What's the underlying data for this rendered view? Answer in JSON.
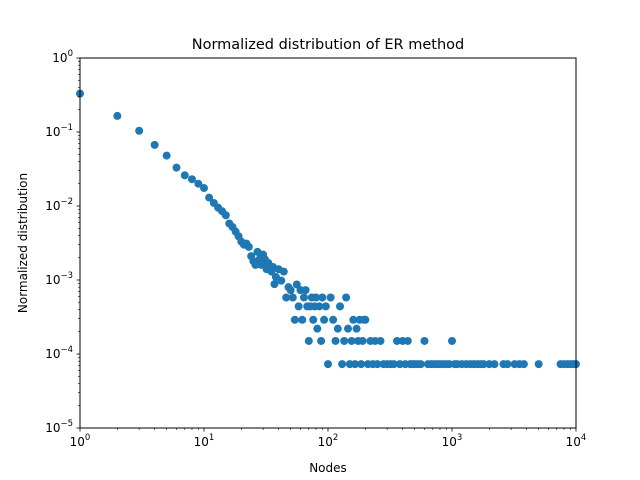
{
  "chart_data": {
    "type": "scatter",
    "title": "Normalized distribution of ER method",
    "xlabel": "Nodes",
    "ylabel": "Normalized distribution",
    "xscale": "log",
    "yscale": "log",
    "xlim": [
      1,
      10000
    ],
    "ylim": [
      1e-05,
      1
    ],
    "grid": false,
    "legend": "none",
    "x_ticks": [
      {
        "value": 1,
        "base": "10",
        "exp": "0"
      },
      {
        "value": 10,
        "base": "10",
        "exp": "1"
      },
      {
        "value": 100,
        "base": "10",
        "exp": "2"
      },
      {
        "value": 1000,
        "base": "10",
        "exp": "3"
      },
      {
        "value": 10000,
        "base": "10",
        "exp": "4"
      }
    ],
    "y_ticks": [
      {
        "value": 1e-05,
        "base": "10",
        "exp": "−5"
      },
      {
        "value": 0.0001,
        "base": "10",
        "exp": "−4"
      },
      {
        "value": 0.001,
        "base": "10",
        "exp": "−3"
      },
      {
        "value": 0.01,
        "base": "10",
        "exp": "−2"
      },
      {
        "value": 0.1,
        "base": "10",
        "exp": "−1"
      },
      {
        "value": 1,
        "base": "10",
        "exp": "0"
      }
    ],
    "marker_color": "#1f77b4",
    "points": [
      [
        1,
        0.33
      ],
      [
        2,
        0.165
      ],
      [
        3,
        0.104
      ],
      [
        4,
        0.067
      ],
      [
        5,
        0.048
      ],
      [
        6,
        0.033
      ],
      [
        7,
        0.026
      ],
      [
        8,
        0.023
      ],
      [
        9,
        0.02
      ],
      [
        10,
        0.0175
      ],
      [
        11,
        0.013
      ],
      [
        12,
        0.011
      ],
      [
        13,
        0.0095
      ],
      [
        14,
        0.0085
      ],
      [
        15,
        0.0075
      ],
      [
        16,
        0.0058
      ],
      [
        17,
        0.0052
      ],
      [
        18,
        0.0045
      ],
      [
        19,
        0.0039
      ],
      [
        20,
        0.0033
      ],
      [
        21,
        0.003
      ],
      [
        22,
        0.0031
      ],
      [
        23,
        0.0028
      ],
      [
        24,
        0.0021
      ],
      [
        25,
        0.0018
      ],
      [
        26,
        0.0016
      ],
      [
        27,
        0.0024
      ],
      [
        28,
        0.0019
      ],
      [
        29,
        0.0016
      ],
      [
        30,
        0.0022
      ],
      [
        31,
        0.0019
      ],
      [
        32,
        0.0014
      ],
      [
        33,
        0.0017
      ],
      [
        35,
        0.0013
      ],
      [
        36,
        0.0015
      ],
      [
        37,
        0.00088
      ],
      [
        38,
        0.0011
      ],
      [
        40,
        0.0014
      ],
      [
        42,
        0.00098
      ],
      [
        44,
        0.0013
      ],
      [
        46,
        0.00058
      ],
      [
        48,
        0.0008
      ],
      [
        50,
        0.00073
      ],
      [
        52,
        0.00058
      ],
      [
        54,
        0.00029
      ],
      [
        56,
        0.00087
      ],
      [
        58,
        0.00044
      ],
      [
        60,
        0.00073
      ],
      [
        62,
        0.00029
      ],
      [
        64,
        0.00058
      ],
      [
        66,
        0.00073
      ],
      [
        68,
        0.00044
      ],
      [
        70,
        0.00015
      ],
      [
        72,
        0.00044
      ],
      [
        74,
        0.00058
      ],
      [
        76,
        0.00029
      ],
      [
        78,
        0.00044
      ],
      [
        80,
        0.00058
      ],
      [
        82,
        0.00022
      ],
      [
        85,
        0.00044
      ],
      [
        88,
        0.00015
      ],
      [
        90,
        0.00058
      ],
      [
        93,
        0.00029
      ],
      [
        96,
        0.00044
      ],
      [
        100,
        7.3e-05
      ],
      [
        105,
        0.00058
      ],
      [
        110,
        0.00029
      ],
      [
        115,
        0.00015
      ],
      [
        120,
        0.00022
      ],
      [
        125,
        0.00044
      ],
      [
        130,
        7.3e-05
      ],
      [
        135,
        0.00015
      ],
      [
        140,
        0.00058
      ],
      [
        145,
        0.00022
      ],
      [
        150,
        7.3e-05
      ],
      [
        155,
        0.00015
      ],
      [
        160,
        0.00029
      ],
      [
        165,
        7.3e-05
      ],
      [
        170,
        0.00022
      ],
      [
        175,
        0.00015
      ],
      [
        180,
        0.00029
      ],
      [
        185,
        7.3e-05
      ],
      [
        190,
        0.00015
      ],
      [
        195,
        0.00029
      ],
      [
        200,
        0.00029
      ],
      [
        210,
        7.3e-05
      ],
      [
        220,
        0.00015
      ],
      [
        230,
        7.3e-05
      ],
      [
        240,
        0.00015
      ],
      [
        250,
        7.3e-05
      ],
      [
        265,
        0.00015
      ],
      [
        280,
        7.3e-05
      ],
      [
        300,
        7.3e-05
      ],
      [
        320,
        7.3e-05
      ],
      [
        340,
        7.3e-05
      ],
      [
        360,
        0.00015
      ],
      [
        380,
        7.3e-05
      ],
      [
        400,
        0.00015
      ],
      [
        420,
        7.3e-05
      ],
      [
        440,
        0.00015
      ],
      [
        460,
        7.3e-05
      ],
      [
        480,
        7.3e-05
      ],
      [
        500,
        7.3e-05
      ],
      [
        530,
        7.3e-05
      ],
      [
        560,
        7.3e-05
      ],
      [
        600,
        0.00015
      ],
      [
        640,
        7.3e-05
      ],
      [
        680,
        7.3e-05
      ],
      [
        720,
        7.3e-05
      ],
      [
        760,
        7.3e-05
      ],
      [
        800,
        7.3e-05
      ],
      [
        850,
        7.3e-05
      ],
      [
        900,
        7.3e-05
      ],
      [
        950,
        7.3e-05
      ],
      [
        1000,
        0.00015
      ],
      [
        1050,
        7.3e-05
      ],
      [
        1100,
        7.3e-05
      ],
      [
        1200,
        7.3e-05
      ],
      [
        1300,
        7.3e-05
      ],
      [
        1400,
        7.3e-05
      ],
      [
        1500,
        7.3e-05
      ],
      [
        1600,
        7.3e-05
      ],
      [
        1700,
        7.3e-05
      ],
      [
        1800,
        7.3e-05
      ],
      [
        2000,
        7.3e-05
      ],
      [
        2200,
        7.3e-05
      ],
      [
        2600,
        7.3e-05
      ],
      [
        2800,
        7.3e-05
      ],
      [
        3200,
        7.3e-05
      ],
      [
        3500,
        7.3e-05
      ],
      [
        3800,
        7.3e-05
      ],
      [
        5000,
        7.3e-05
      ],
      [
        7500,
        7.3e-05
      ],
      [
        8000,
        7.3e-05
      ],
      [
        8500,
        7.3e-05
      ],
      [
        9000,
        7.3e-05
      ],
      [
        9500,
        7.3e-05
      ],
      [
        10000,
        7.3e-05
      ]
    ]
  }
}
